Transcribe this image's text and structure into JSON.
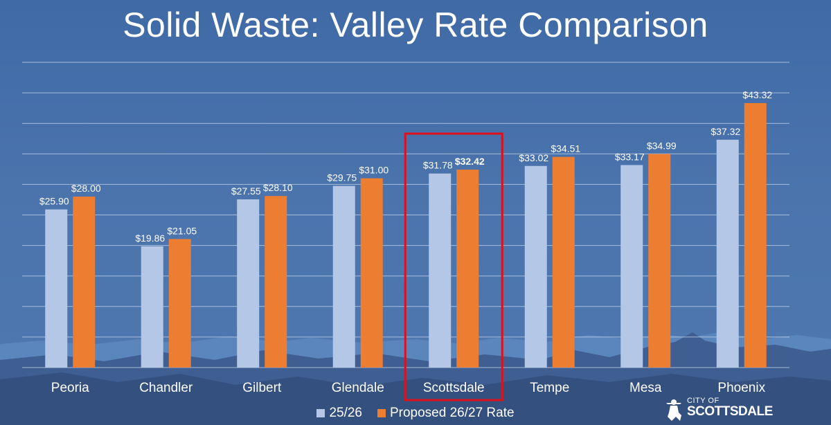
{
  "title": "Solid Waste: Valley Rate Comparison",
  "colors": {
    "background": "#4b74ad",
    "series_current": "#b4c7e7",
    "series_proposed": "#ed7d31",
    "highlight_box": "#e0101a",
    "gridline": "#c9d6ea"
  },
  "chart_data": {
    "type": "bar",
    "title": "Solid Waste: Valley Rate Comparison",
    "categories": [
      "Peoria",
      "Chandler",
      "Gilbert",
      "Glendale",
      "Scottsdale",
      "Tempe",
      "Mesa",
      "Phoenix"
    ],
    "series": [
      {
        "name": "25/26",
        "values": [
          25.9,
          19.86,
          27.55,
          29.75,
          31.78,
          33.02,
          33.17,
          37.32
        ],
        "labels": [
          "$25.90",
          "$19.86",
          "$27.55",
          "$29.75",
          "$31.78",
          "$33.02",
          "$33.17",
          "$37.32"
        ]
      },
      {
        "name": "Proposed 26/27 Rate",
        "values": [
          28.0,
          21.05,
          28.1,
          31.0,
          32.42,
          34.51,
          34.99,
          43.32
        ],
        "labels": [
          "$28.00",
          "$21.05",
          "$28.10",
          "$31.00",
          "$32.42",
          "$34.51",
          "$34.99",
          "$43.32"
        ]
      }
    ],
    "ylim": [
      0,
      50
    ],
    "grid": true,
    "y_axis_labels_shown": false,
    "legend_position": "bottom",
    "highlighted_category": "Scottsdale",
    "bold_label": {
      "series": 1,
      "category": "Scottsdale"
    }
  },
  "legend": {
    "current_label": "25/26",
    "proposed_label": "Proposed 26/27 Rate"
  },
  "logo": {
    "line1": "CITY OF",
    "line2": "SCOTTSDALE"
  }
}
